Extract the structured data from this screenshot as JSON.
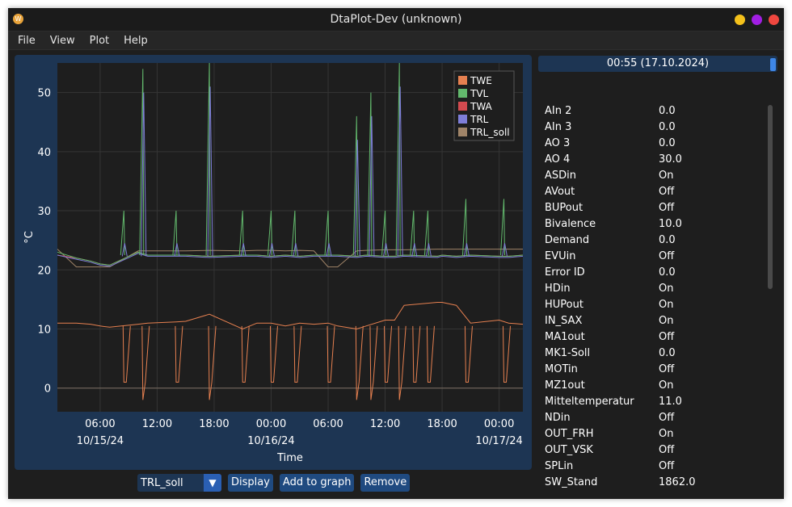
{
  "window": {
    "title": "DtaPlot-Dev (unknown)",
    "app_icon_glyph": "W",
    "buttons": [
      {
        "name": "minimize",
        "color": "#f4c11b"
      },
      {
        "name": "maximize",
        "color": "#a11ee3"
      },
      {
        "name": "close",
        "color": "#f0473f"
      }
    ]
  },
  "menu": [
    "File",
    "View",
    "Plot",
    "Help"
  ],
  "chart_data": {
    "type": "line",
    "xlabel": "Time",
    "ylabel": "°C",
    "ylim": [
      -4,
      55
    ],
    "y_ticks": [
      0,
      10,
      20,
      30,
      40,
      50
    ],
    "xlim": [
      "2024-10-15 01:30",
      "2024-10-17 01:45"
    ],
    "x_ticks": [
      {
        "time": "06:00",
        "date": "10/15/24"
      },
      {
        "time": "12:00",
        "date": ""
      },
      {
        "time": "18:00",
        "date": ""
      },
      {
        "time": "00:00",
        "date": "10/16/24"
      },
      {
        "time": "06:00",
        "date": ""
      },
      {
        "time": "12:00",
        "date": ""
      },
      {
        "time": "18:00",
        "date": ""
      },
      {
        "time": "00:00",
        "date": "10/17/24"
      }
    ],
    "grid": true,
    "legend_position": "top-right",
    "x_hours_from_tick_first": [
      -4.5,
      -2.5,
      -1.0,
      0.0,
      1.0,
      4.0,
      5.0,
      8.0,
      9.0,
      11.5,
      15.0,
      16.5,
      18.0,
      19.5,
      21.0,
      22.5,
      24.0,
      25.0,
      27.0,
      28.0,
      30.0,
      31.0,
      32.0,
      35.5,
      36.0,
      37.5,
      39.0,
      42.0,
      43.0,
      44.5
    ],
    "series": [
      {
        "name": "TWE",
        "color": "#e68050",
        "values": [
          11,
          11,
          10.8,
          10.5,
          10.3,
          10.8,
          11,
          11.2,
          11.3,
          12.5,
          10,
          11,
          11,
          10.5,
          11,
          10.8,
          11,
          10.5,
          10,
          10.5,
          11.5,
          11.5,
          14,
          14.5,
          14.5,
          14,
          11,
          11.5,
          11,
          10.8
        ]
      },
      {
        "name": "TVL",
        "color": "#62b86c",
        "values": [
          23,
          22,
          21.5,
          21,
          20.8,
          23,
          22.5,
          22.5,
          22.5,
          22.3,
          22.5,
          22.5,
          22.3,
          22.5,
          22.3,
          22.5,
          22.5,
          22.5,
          22.3,
          22.5,
          22.3,
          22.3,
          22.5,
          22.3,
          22.5,
          22.3,
          22.5,
          22.3,
          22.3,
          22.5
        ]
      },
      {
        "name": "TWA",
        "color": "#d24a4f",
        "values": [
          22.5,
          22,
          21.5,
          21,
          20.8,
          23,
          22.5,
          22.5,
          22.5,
          22.3,
          22.5,
          22.5,
          22.3,
          22.5,
          22.3,
          22.5,
          22.5,
          22.5,
          22.3,
          22.5,
          22.3,
          22.3,
          22.5,
          22.3,
          22.5,
          22.3,
          22.5,
          22.3,
          22.3,
          22.5
        ]
      },
      {
        "name": "TRL",
        "color": "#7e7ed8",
        "values": [
          22.5,
          21.8,
          21.3,
          20.8,
          20.6,
          22.8,
          22.3,
          22.3,
          22.3,
          22.1,
          22.3,
          22.3,
          22.1,
          22.3,
          22.1,
          22.3,
          22.3,
          22.3,
          22.1,
          22.3,
          22.1,
          22.1,
          22.3,
          22.1,
          22.3,
          22.1,
          22.3,
          22.1,
          22.1,
          22.3
        ]
      },
      {
        "name": "TRL_soll",
        "color": "#a08468",
        "values": [
          23.5,
          20.5,
          20.5,
          20.5,
          20.5,
          23.2,
          23.2,
          23.2,
          23.2,
          23.3,
          23.2,
          23.3,
          23.3,
          23.2,
          23.3,
          23.2,
          20.5,
          20.5,
          23.2,
          23.3,
          23.4,
          23.4,
          23.4,
          23.5,
          23.5,
          23.5,
          23.5,
          23.5,
          23.5,
          23.5
        ]
      }
    ],
    "spikes_hours": [
      2.5,
      4.5,
      8.0,
      11.5,
      15.0,
      18.0,
      20.5,
      24.0,
      27.0,
      28.5,
      30.0,
      31.5,
      33.0,
      34.5,
      38.5,
      42.5
    ],
    "spike_peaks": [
      30,
      54,
      30,
      55,
      30,
      30,
      30,
      30,
      46,
      50,
      30,
      55,
      30,
      30,
      32,
      32
    ]
  },
  "controls": {
    "selected_series": "TRL_soll",
    "display_label": "Display",
    "add_label": "Add to graph",
    "remove_label": "Remove"
  },
  "timestamp": "00:55 (17.10.2024)",
  "properties": [
    {
      "name": "AIn 2",
      "value": "0.0"
    },
    {
      "name": "AIn 3",
      "value": "0.0"
    },
    {
      "name": "AO 3",
      "value": "0.0"
    },
    {
      "name": "AO 4",
      "value": "30.0"
    },
    {
      "name": "ASDin",
      "value": "On"
    },
    {
      "name": "AVout",
      "value": "Off"
    },
    {
      "name": "BUPout",
      "value": "Off"
    },
    {
      "name": "Bivalence",
      "value": "10.0"
    },
    {
      "name": "Demand",
      "value": "0.0"
    },
    {
      "name": "EVUin",
      "value": "Off"
    },
    {
      "name": "Error ID",
      "value": "0.0"
    },
    {
      "name": "HDin",
      "value": "On"
    },
    {
      "name": "HUPout",
      "value": "On"
    },
    {
      "name": "IN_SAX",
      "value": "On"
    },
    {
      "name": "MA1out",
      "value": "Off"
    },
    {
      "name": "MK1-Soll",
      "value": "0.0"
    },
    {
      "name": "MOTin",
      "value": "Off"
    },
    {
      "name": "MZ1out",
      "value": "On"
    },
    {
      "name": "Mitteltemperatur",
      "value": "11.0"
    },
    {
      "name": "NDin",
      "value": "Off"
    },
    {
      "name": "OUT_FRH",
      "value": "On"
    },
    {
      "name": "OUT_VSK",
      "value": "Off"
    },
    {
      "name": "SPLin",
      "value": "Off"
    },
    {
      "name": "SW_Stand",
      "value": "1862.0"
    }
  ]
}
